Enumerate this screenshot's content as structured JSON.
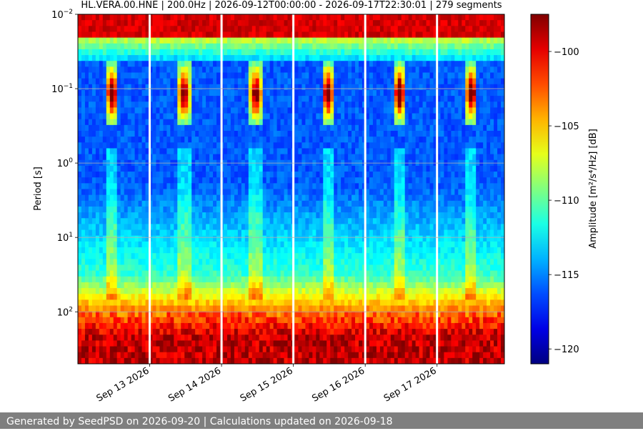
{
  "chart_data": {
    "type": "heatmap",
    "title": "HL.VERA.00.HNE | 200.0Hz | 2026-09-12T00:00:00 - 2026-09-17T22:30:01 | 279 segments",
    "ylabel": "Period [s]",
    "colorbar_label": "Amplitude [m²/s⁴/Hz] [dB]",
    "y_scale": "log",
    "y_inverted": true,
    "ylim": [
      0.01,
      500
    ],
    "y_ticks": [
      {
        "value": 0.01,
        "base": "10",
        "exp": "−2"
      },
      {
        "value": 0.1,
        "base": "10",
        "exp": "−1"
      },
      {
        "value": 1,
        "base": "10",
        "exp": "0"
      },
      {
        "value": 10,
        "base": "10",
        "exp": "1"
      },
      {
        "value": 100,
        "base": "10",
        "exp": "2"
      }
    ],
    "xlim": [
      "2026-09-12T00:00:00",
      "2026-09-17T22:30:01"
    ],
    "x_ticks": [
      {
        "date": "2026-09-13",
        "label": "Sep 13 2026"
      },
      {
        "date": "2026-09-14",
        "label": "Sep 14 2026"
      },
      {
        "date": "2026-09-15",
        "label": "Sep 15 2026"
      },
      {
        "date": "2026-09-16",
        "label": "Sep 16 2026"
      },
      {
        "date": "2026-09-17",
        "label": "Sep 17 2026"
      }
    ],
    "colorbar": {
      "colormap": "jet",
      "range_db": [
        -121,
        -97.5
      ],
      "ticks": [
        -100,
        -105,
        -110,
        -115,
        -120
      ],
      "tick_labels": [
        "−100",
        "−105",
        "−110",
        "−115",
        "−120"
      ]
    },
    "grid": true,
    "data_gaps": [
      "2026-09-13T00:00:00",
      "2026-09-14T00:00:00",
      "2026-09-15T00:00:00",
      "2026-09-16T00:00:00",
      "2026-09-17T00:00:00"
    ],
    "features": {
      "daily_peak_hours": [
        9.5,
        13.5
      ],
      "period_band_s": [
        0.045,
        0.3
      ],
      "peak_day_offsets": [
        0.45,
        1.45,
        2.45,
        3.45,
        4.35,
        5.3
      ]
    }
  },
  "footer": "Generated by SeedPSD on 2026-09-20 | Calculations updated on 2026-09-18"
}
